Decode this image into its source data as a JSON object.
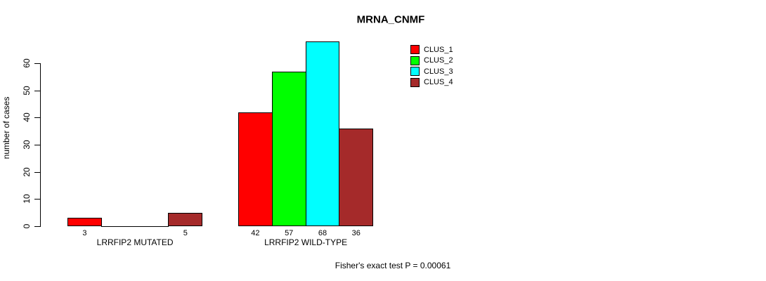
{
  "title": "MRNA_CNMF",
  "y_axis": {
    "label": "number of cases",
    "ticks": [
      0,
      10,
      20,
      30,
      40,
      50,
      60
    ]
  },
  "footnote": "Fisher's exact test P = 0.00061",
  "legend": {
    "position": "top-right",
    "items": [
      {
        "label": "CLUS_1",
        "color": "#FF0000"
      },
      {
        "label": "CLUS_2",
        "color": "#00FF00"
      },
      {
        "label": "CLUS_3",
        "color": "#00FFFF"
      },
      {
        "label": "CLUS_4",
        "color": "#A52A2A"
      }
    ]
  },
  "chart_data": {
    "type": "bar",
    "title": "MRNA_CNMF",
    "categories": [
      "LRRFIP2 MUTATED",
      "LRRFIP2 WILD-TYPE"
    ],
    "series": [
      {
        "name": "CLUS_1",
        "color": "#FF0000",
        "values": [
          3,
          42
        ]
      },
      {
        "name": "CLUS_2",
        "color": "#00FF00",
        "values": [
          0,
          57
        ]
      },
      {
        "name": "CLUS_3",
        "color": "#00FFFF",
        "values": [
          0,
          68
        ]
      },
      {
        "name": "CLUS_4",
        "color": "#A52A2A",
        "values": [
          5,
          36
        ]
      }
    ],
    "xlabel": "",
    "ylabel": "number of cases",
    "ylim": [
      0,
      68
    ],
    "yticks": [
      0,
      10,
      20,
      30,
      40,
      50,
      60
    ],
    "grid": false,
    "legend_position": "top-right",
    "value_labels": "shown under each nonzero bar",
    "annotation": "Fisher's exact test P = 0.00061"
  }
}
